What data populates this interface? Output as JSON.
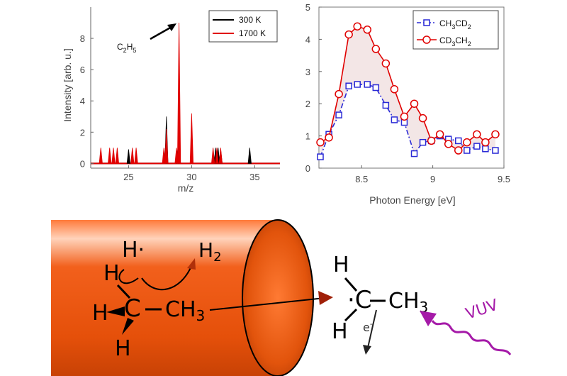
{
  "chart_data": [
    {
      "type": "line",
      "title": "",
      "xlabel": "m/z",
      "ylabel": "Intensity [arb. u.]",
      "xlim": [
        22,
        37
      ],
      "ylim": [
        -0.3,
        10
      ],
      "xticks": [
        25,
        30,
        35
      ],
      "yticks": [
        0,
        2,
        4,
        6,
        8
      ],
      "legend_position": "top-right",
      "annotation": {
        "text": "C2H5",
        "main": "C",
        "sub1": "2",
        "mid": "H",
        "sub2": "5",
        "x": 29,
        "y": 9
      },
      "series": [
        {
          "name": "300 K",
          "color": "#000000",
          "peaks": [
            [
              25.0,
              0.9
            ],
            [
              28.0,
              3.0
            ],
            [
              28.9,
              0.9
            ],
            [
              31.9,
              1.0
            ],
            [
              32.1,
              1.0
            ],
            [
              32.3,
              0.9
            ],
            [
              34.6,
              1.0
            ]
          ]
        },
        {
          "name": "1700 K",
          "color": "#e00000",
          "peaks": [
            [
              22.8,
              1.0
            ],
            [
              23.5,
              1.0
            ],
            [
              23.8,
              1.0
            ],
            [
              24.1,
              1.0
            ],
            [
              25.3,
              1.0
            ],
            [
              25.6,
              1.0
            ],
            [
              27.8,
              1.0
            ],
            [
              28.0,
              2.2
            ],
            [
              28.8,
              1.0
            ],
            [
              29.0,
              9.0
            ],
            [
              30.0,
              3.2
            ],
            [
              31.7,
              1.0
            ],
            [
              32.0,
              1.0
            ],
            [
              32.3,
              1.0
            ]
          ]
        }
      ]
    },
    {
      "type": "line",
      "title": "",
      "xlabel": "Photon Energy [eV]",
      "ylabel": "",
      "xlim": [
        8.2,
        9.5
      ],
      "ylim": [
        0,
        5
      ],
      "xticks": [
        8.5,
        9,
        9.5
      ],
      "yticks": [
        0,
        1,
        2,
        3,
        4,
        5
      ],
      "legend_position": "top-right",
      "series": [
        {
          "name": "CH3CD2",
          "label_parts": [
            "CH",
            "3",
            "CD",
            "2"
          ],
          "color": "#2a2ad6",
          "style": "dash-dot",
          "marker": "square",
          "x": [
            8.21,
            8.27,
            8.34,
            8.41,
            8.47,
            8.54,
            8.6,
            8.67,
            8.73,
            8.8,
            8.87,
            8.93,
            8.99,
            9.05,
            9.11,
            9.18,
            9.24,
            9.31,
            9.37,
            9.44
          ],
          "y": [
            0.35,
            1.05,
            1.65,
            2.55,
            2.6,
            2.6,
            2.5,
            1.95,
            1.5,
            1.42,
            0.45,
            0.8,
            0.85,
            1.0,
            0.9,
            0.85,
            0.55,
            0.68,
            0.6,
            0.55
          ]
        },
        {
          "name": "CD3CH2",
          "label_parts": [
            "CD",
            "3",
            "CH",
            "2"
          ],
          "color": "#e00000",
          "style": "solid",
          "marker": "circle",
          "x": [
            8.21,
            8.27,
            8.34,
            8.41,
            8.47,
            8.54,
            8.6,
            8.67,
            8.73,
            8.8,
            8.87,
            8.93,
            8.99,
            9.05,
            9.11,
            9.18,
            9.24,
            9.31,
            9.37,
            9.44
          ],
          "y": [
            0.8,
            0.95,
            2.3,
            4.15,
            4.4,
            4.3,
            3.7,
            3.25,
            2.45,
            1.6,
            2.0,
            1.55,
            0.85,
            1.05,
            0.75,
            0.55,
            0.8,
            1.05,
            0.8,
            1.05
          ]
        }
      ]
    }
  ],
  "diagram": {
    "left": {
      "h_radical": "H·",
      "h2": "H",
      "h2_sub": "2",
      "h_top": "H",
      "h_left": "H",
      "c": "C",
      "ch3": "CH",
      "ch3_sub": "3",
      "h_bottom": "H"
    },
    "right": {
      "h_top": "H",
      "c": "·C",
      "ch3": "CH",
      "ch3_sub": "3",
      "h_bottom": "H",
      "electron": "e",
      "electron_sup": "-",
      "vuv": "VUV"
    }
  }
}
